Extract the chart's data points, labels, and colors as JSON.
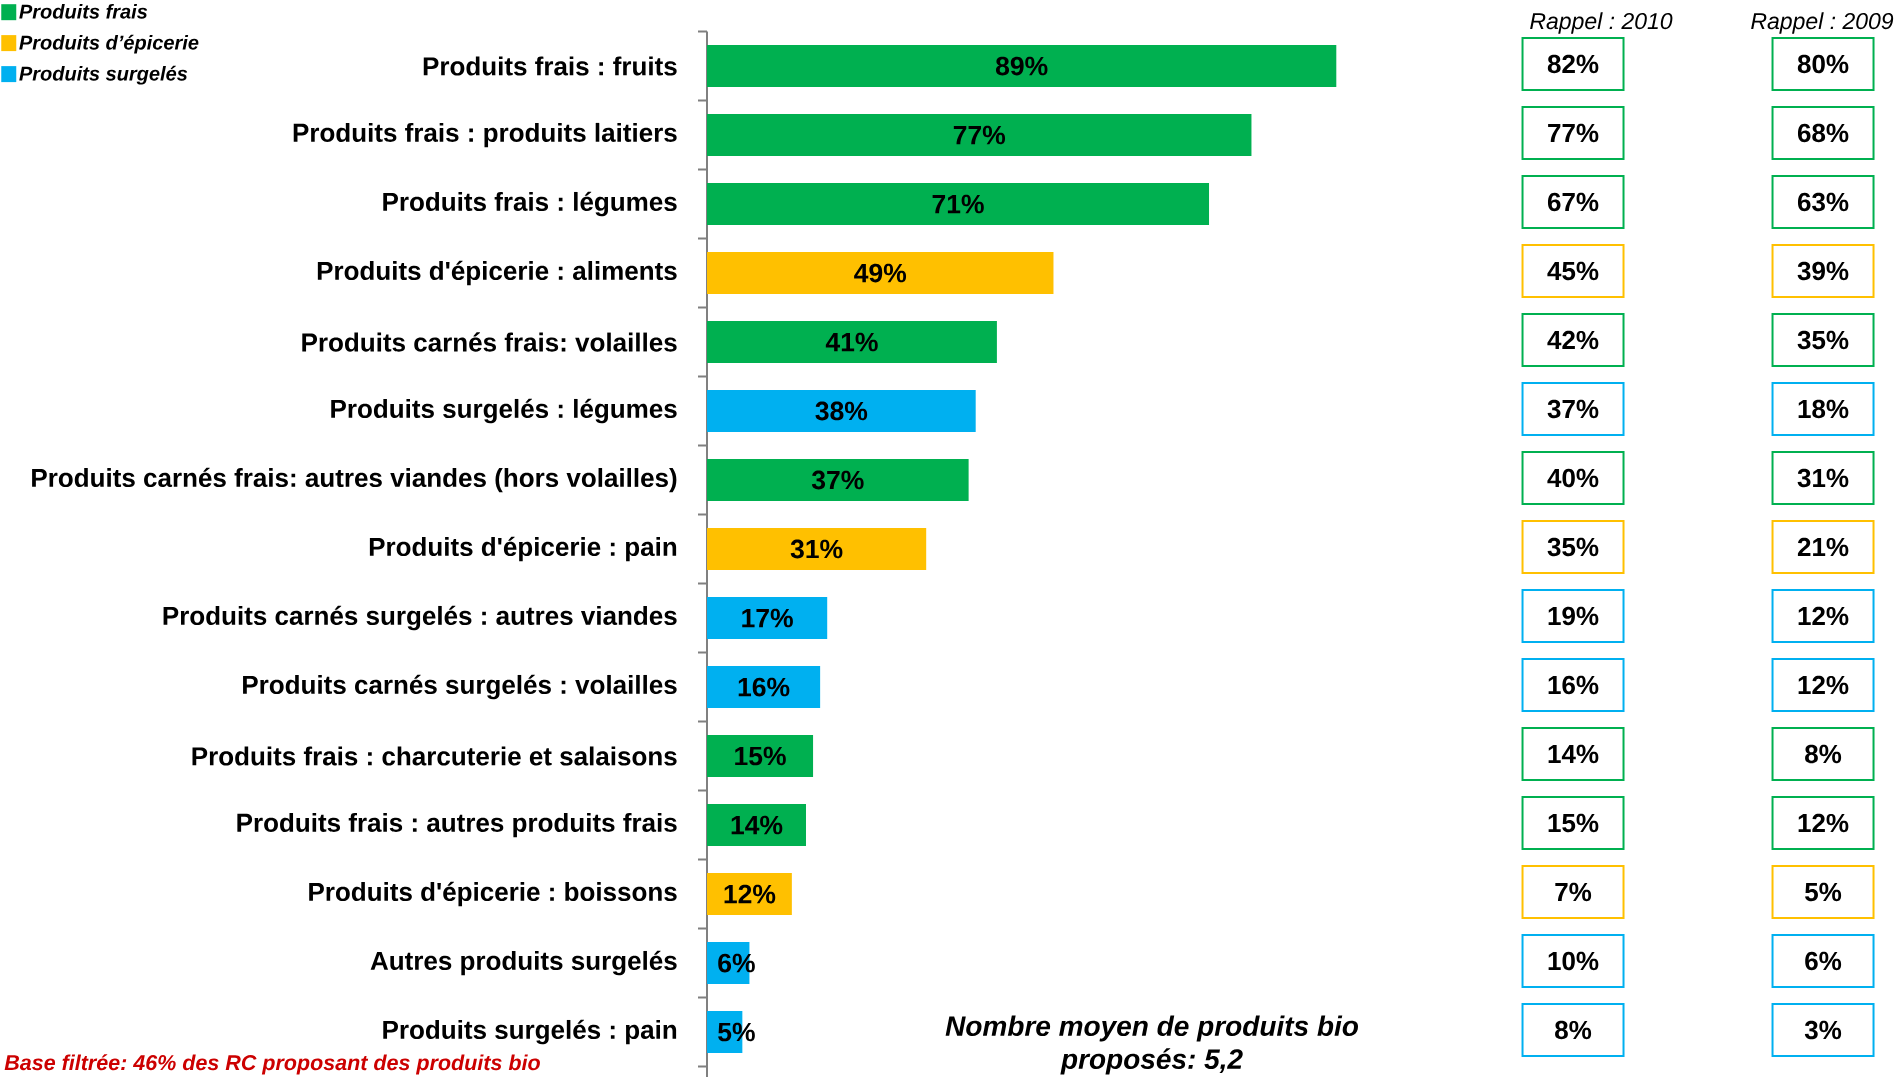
{
  "chart_data": [
    {
      "type": "bar",
      "orientation": "horizontal",
      "categories": [
        "Produits frais : fruits",
        "Produits frais : produits laitiers",
        "Produits frais : légumes",
        "Produits d'épicerie : aliments",
        "Produits carnés frais: volailles",
        "Produits surgelés : légumes",
        "Produits carnés frais: autres viandes (hors volailles)",
        "Produits d'épicerie : pain",
        "Produits carnés surgelés : autres viandes",
        "Produits carnés surgelés : volailles",
        "Produits frais : charcuterie et salaisons",
        "Produits frais : autres produits frais",
        "Produits d'épicerie : boissons",
        "Autres produits surgelés",
        "Produits surgelés : pain"
      ],
      "series": [
        {
          "name": "Produits frais",
          "color": "#00b050",
          "values": [
            89,
            77,
            71,
            null,
            41,
            null,
            37,
            null,
            null,
            null,
            15,
            14,
            null,
            null,
            null
          ],
          "value_labels": [
            "89%",
            "77%",
            "71%",
            null,
            "41%",
            null,
            "37%",
            null,
            null,
            null,
            "15%",
            "14%",
            null,
            null,
            null
          ]
        },
        {
          "name": "Produits d’épicerie",
          "color": "#ffc000",
          "values": [
            null,
            null,
            null,
            49,
            null,
            null,
            null,
            31,
            null,
            null,
            null,
            null,
            12,
            null,
            null
          ],
          "value_labels": [
            null,
            null,
            null,
            "49%",
            null,
            null,
            null,
            "31%",
            null,
            null,
            null,
            null,
            "12%",
            null,
            null
          ]
        },
        {
          "name": "Produits surgelés",
          "color": "#00b0f0",
          "values": [
            null,
            null,
            null,
            null,
            null,
            38,
            null,
            null,
            17,
            16,
            null,
            null,
            null,
            6,
            5
          ],
          "value_labels": [
            null,
            null,
            null,
            null,
            null,
            "38%",
            null,
            null,
            "17%",
            "16%",
            null,
            null,
            null,
            "6%",
            "5%"
          ]
        }
      ],
      "legend": "top left",
      "annotations": [
        "Nombre moyen de produits bio proposés: 5,2",
        "Base filtrée: 46% des RC proposant des produits bio"
      ]
    },
    {
      "type": "other",
      "title": "Rappel : 2010",
      "categories": [
        null,
        null,
        null,
        null,
        null,
        null,
        null,
        null,
        null,
        null,
        null,
        null,
        null,
        null,
        null
      ],
      "value_labels": [
        "82%",
        "77%",
        "67%",
        "45%",
        "42%",
        "37%",
        "40%",
        "35%",
        "19%",
        "16%",
        "14%",
        "15%",
        "7%",
        "10%",
        "8%"
      ],
      "colors": [
        "#00b050",
        "#00b050",
        "#00b050",
        "#ffc000",
        "#00b050",
        "#00b0f0",
        "#00b050",
        "#ffc000",
        "#00b0f0",
        "#00b0f0",
        "#00b050",
        "#00b050",
        "#ffc000",
        "#00b0f0",
        "#00b0f0"
      ]
    },
    {
      "type": "other",
      "title": "Rappel : 2009",
      "categories": [
        null,
        null,
        null,
        null,
        null,
        null,
        null,
        null,
        null,
        null,
        null,
        null,
        null,
        null,
        null
      ],
      "value_labels": [
        "80%",
        "68%",
        "63%",
        "39%",
        "35%",
        "18%",
        "31%",
        "21%",
        "12%",
        "12%",
        "8%",
        "12%",
        "5%",
        "6%",
        "3%"
      ],
      "colors": [
        "#00b050",
        "#00b050",
        "#00b050",
        "#ffc000",
        "#00b050",
        "#00b0f0",
        "#00b050",
        "#ffc000",
        "#00b0f0",
        "#00b0f0",
        "#00b050",
        "#00b050",
        "#ffc000",
        "#00b0f0",
        "#00b0f0"
      ]
    }
  ]
}
